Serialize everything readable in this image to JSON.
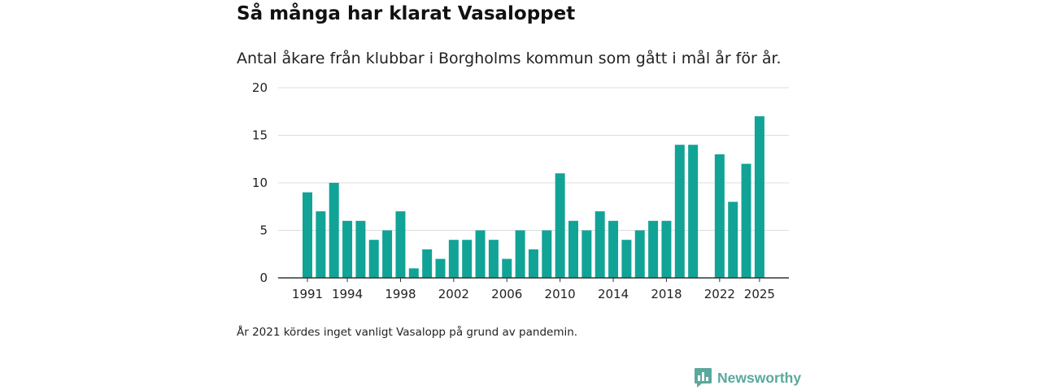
{
  "title": "Så många har klarat Vasaloppet",
  "subtitle": "Antal åkare från klubbar i Borgholms kommun som gått i mål år för år.",
  "footnote": "År 2021 kördes inget vanligt Vasalopp på grund av pandemin.",
  "brand": {
    "name": "Newsworthy",
    "color": "#5aa89e"
  },
  "chart_data": {
    "type": "bar",
    "title": "Så många har klarat Vasaloppet",
    "xlabel": "",
    "ylabel": "",
    "bar_color": "#12a397",
    "ylim": [
      0,
      20
    ],
    "yticks": [
      0,
      5,
      10,
      15,
      20
    ],
    "xticks": [
      1991,
      1994,
      1998,
      2002,
      2006,
      2010,
      2014,
      2018,
      2022,
      2025
    ],
    "grid": true,
    "categories": [
      1991,
      1992,
      1993,
      1994,
      1995,
      1996,
      1997,
      1998,
      1999,
      2000,
      2001,
      2002,
      2003,
      2004,
      2005,
      2006,
      2007,
      2008,
      2009,
      2010,
      2011,
      2012,
      2013,
      2014,
      2015,
      2016,
      2017,
      2018,
      2019,
      2020,
      2021,
      2022,
      2023,
      2024,
      2025
    ],
    "values": [
      9,
      7,
      10,
      6,
      6,
      4,
      5,
      7,
      1,
      3,
      2,
      4,
      4,
      5,
      4,
      2,
      5,
      3,
      5,
      11,
      6,
      5,
      7,
      6,
      4,
      5,
      6,
      6,
      14,
      14,
      null,
      13,
      8,
      12,
      17
    ]
  }
}
